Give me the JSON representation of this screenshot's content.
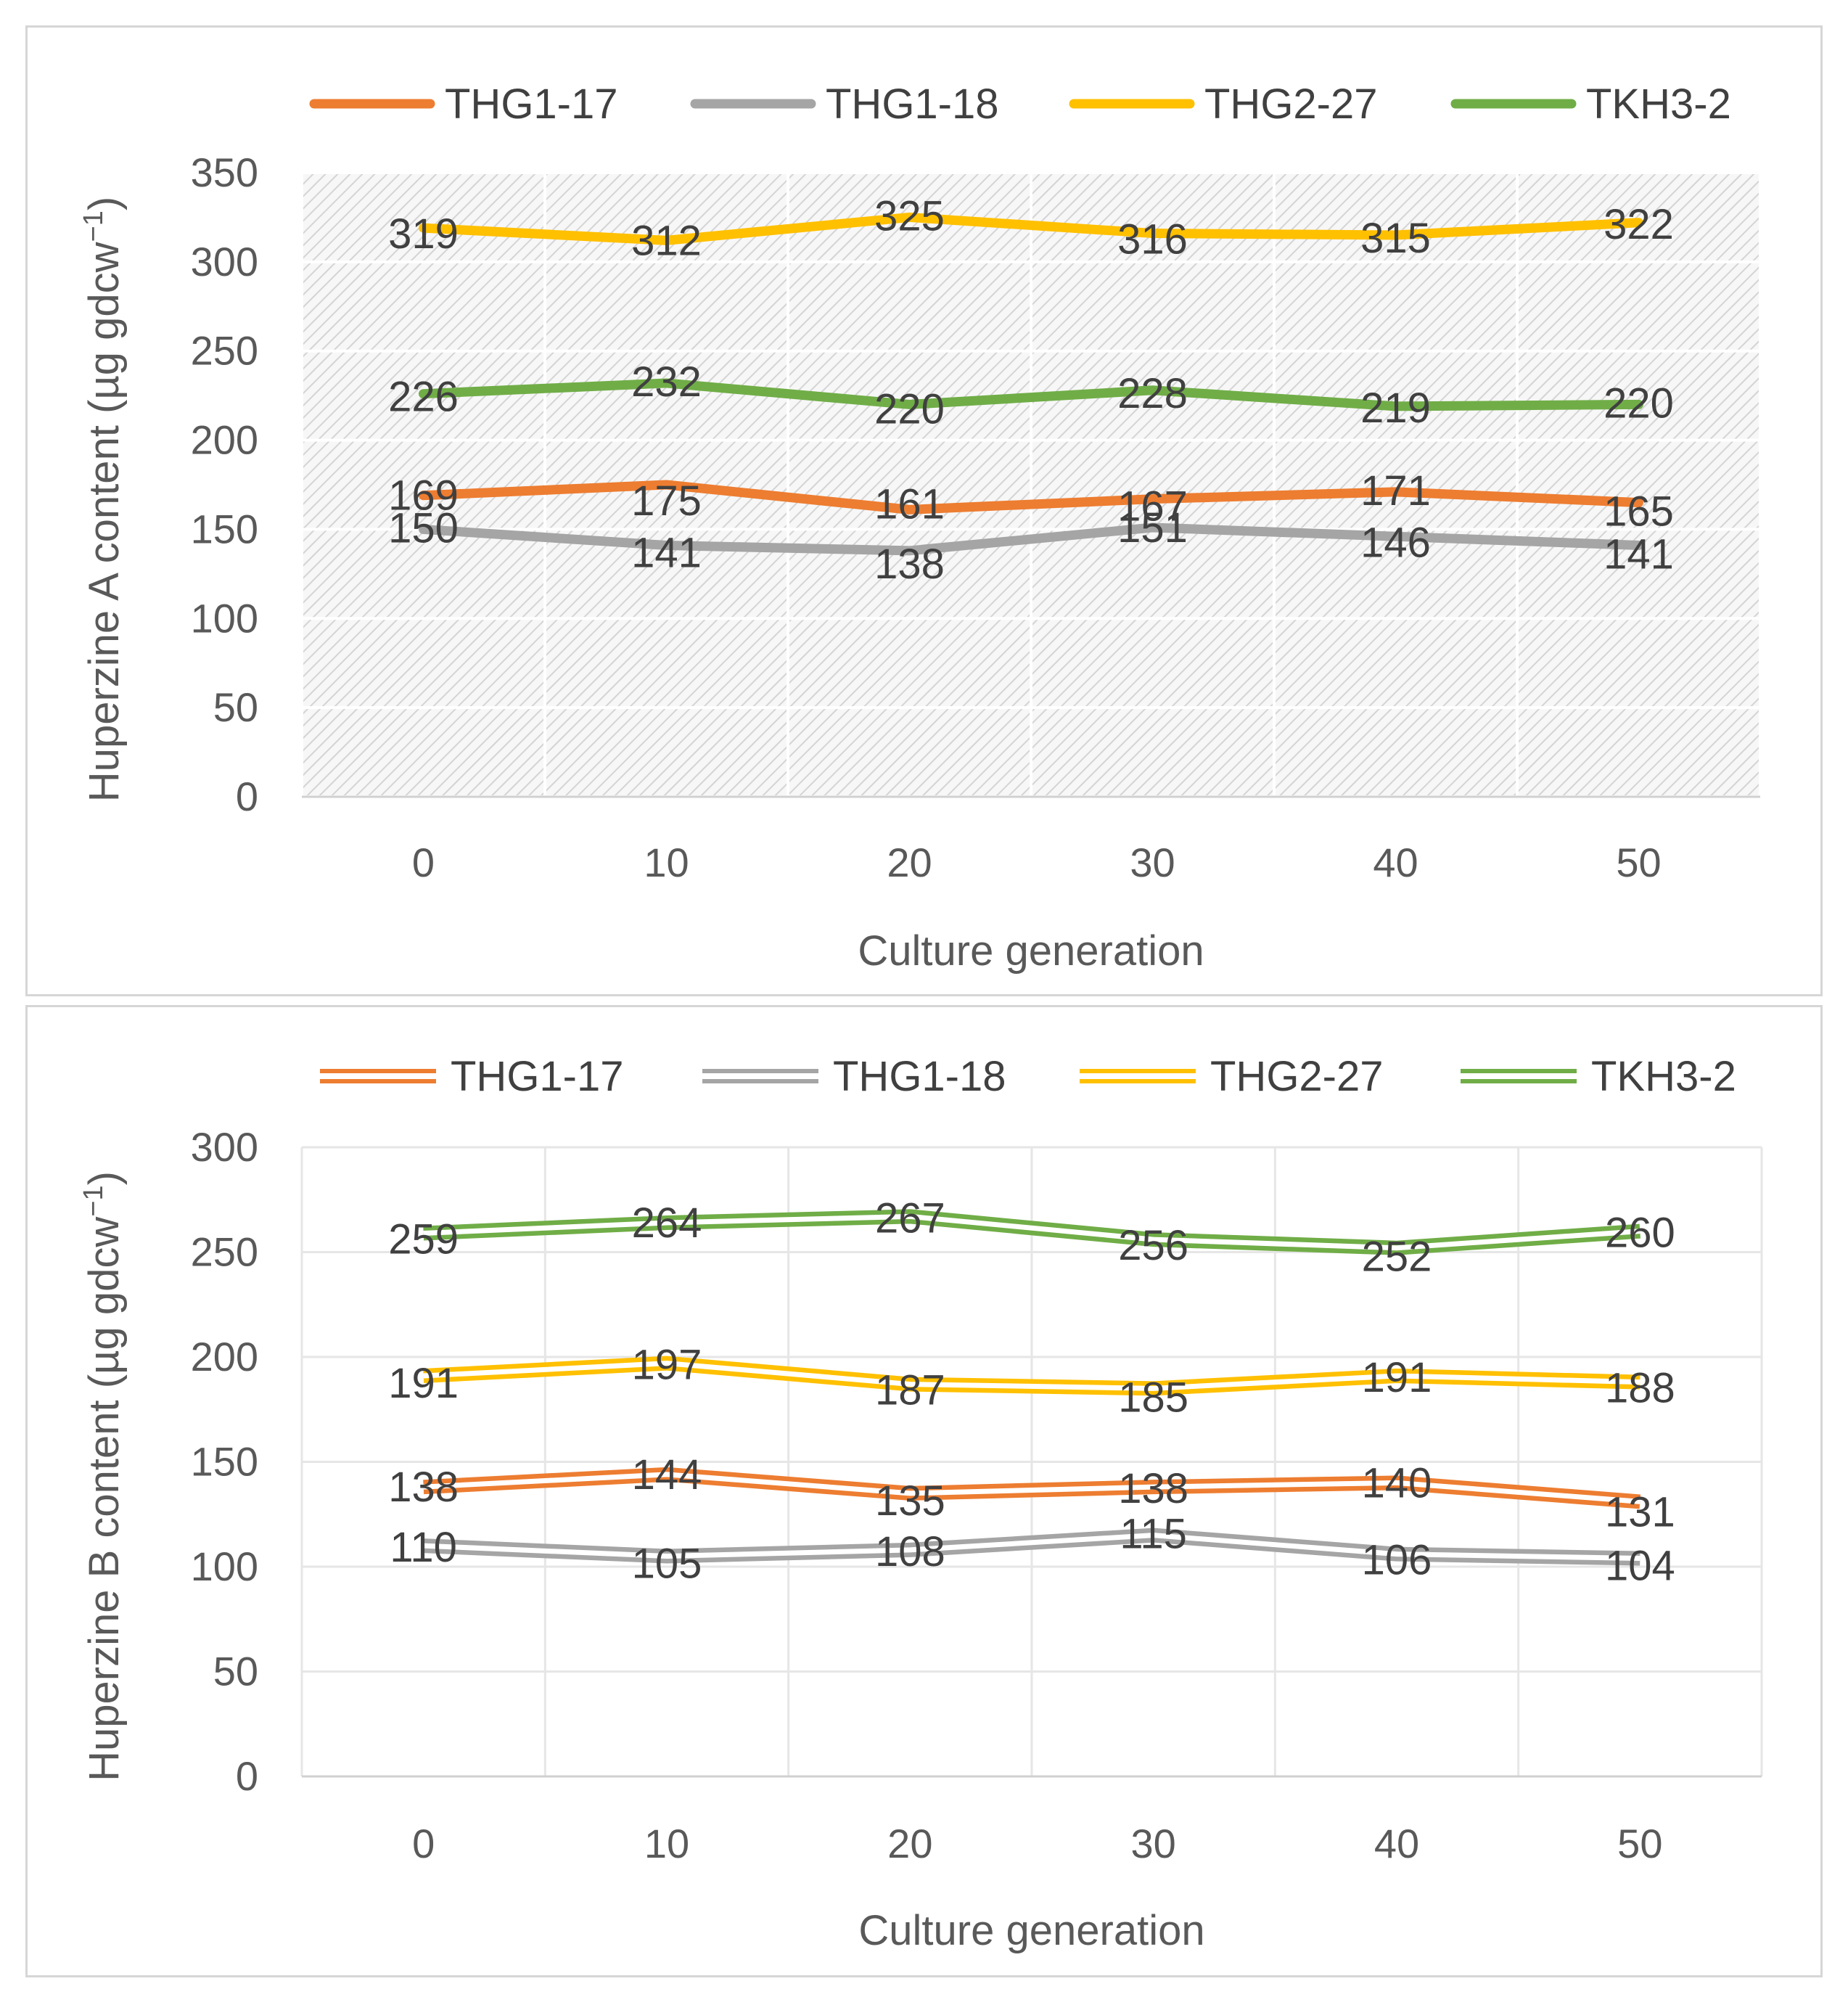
{
  "chart_data": [
    {
      "type": "line",
      "style": "solid",
      "categories": [
        "0",
        "10",
        "20",
        "30",
        "40",
        "50"
      ],
      "series": [
        {
          "name": "THG1-17",
          "color": "#ED7D31",
          "values": [
            169,
            175,
            161,
            167,
            171,
            165
          ]
        },
        {
          "name": "THG1-18",
          "color": "#A5A5A5",
          "values": [
            150,
            141,
            138,
            151,
            146,
            141
          ]
        },
        {
          "name": "THG2-27",
          "color": "#FFC000",
          "values": [
            319,
            312,
            325,
            316,
            315,
            322
          ]
        },
        {
          "name": "TKH3-2",
          "color": "#70AD47",
          "values": [
            226,
            232,
            220,
            228,
            219,
            220
          ]
        }
      ],
      "xlabel": "Culture generation",
      "ylabel": "Huperzine A content (µg gdcw",
      "ylabel_sup": "−1",
      "ylabel_close": ")",
      "ylim": [
        0,
        350
      ],
      "yticks": [
        0,
        50,
        100,
        150,
        200,
        250,
        300,
        350
      ],
      "grid": true,
      "plot_background": "hatched",
      "legend": "top"
    },
    {
      "type": "line",
      "style": "double",
      "categories": [
        "0",
        "10",
        "20",
        "30",
        "40",
        "50"
      ],
      "series": [
        {
          "name": "THG1-17",
          "color": "#ED7D31",
          "values": [
            138,
            144,
            135,
            138,
            140,
            131
          ]
        },
        {
          "name": "THG1-18",
          "color": "#A5A5A5",
          "values": [
            110,
            105,
            108,
            115,
            106,
            104
          ]
        },
        {
          "name": "THG2-27",
          "color": "#FFC000",
          "values": [
            191,
            197,
            187,
            185,
            191,
            188
          ]
        },
        {
          "name": "TKH3-2",
          "color": "#70AD47",
          "values": [
            259,
            264,
            267,
            256,
            252,
            260
          ]
        }
      ],
      "xlabel": "Culture generation",
      "ylabel": "Huperzine B content (µg gdcw",
      "ylabel_sup": "−1",
      "ylabel_close": ")",
      "ylim": [
        0,
        300
      ],
      "yticks": [
        0,
        50,
        100,
        150,
        200,
        250,
        300
      ],
      "grid": true,
      "plot_background": "plain",
      "legend": "top"
    }
  ]
}
